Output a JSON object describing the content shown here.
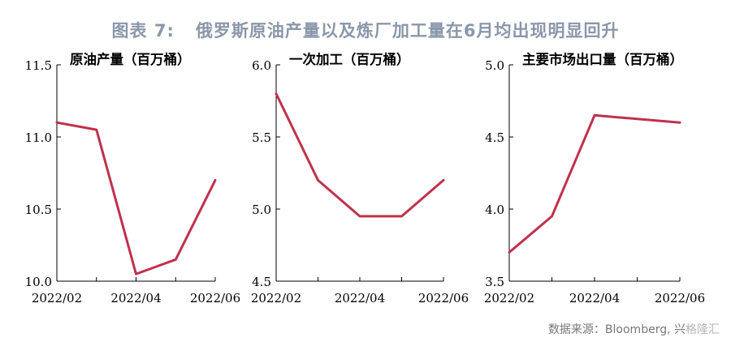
{
  "figure": {
    "number": "图表 7:",
    "title": "俄罗斯原油产量以及炼厂加工量在6月均出现明显回升"
  },
  "source": {
    "text": "数据来源：Bloomberg, 兴",
    "watermark": "格隆汇"
  },
  "colors": {
    "line": "#c0314b",
    "axis": "#000000",
    "text": "#000000"
  },
  "chart_data": [
    {
      "type": "line",
      "title": "原油产量（百万桶）",
      "x": [
        "2022/02",
        "2022/03",
        "2022/04",
        "2022/05",
        "2022/06"
      ],
      "xticks": [
        "2022/02",
        "2022/04",
        "2022/06"
      ],
      "y": [
        11.1,
        11.05,
        10.05,
        10.15,
        10.7
      ],
      "ylim": [
        10.0,
        11.5
      ],
      "yticks": [
        "10.0",
        "10.5",
        "11.0",
        "11.5"
      ],
      "grid": false
    },
    {
      "type": "line",
      "title": "一次加工（百万桶）",
      "x": [
        "2022/02",
        "2022/03",
        "2022/04",
        "2022/05",
        "2022/06"
      ],
      "xticks": [
        "2022/02",
        "2022/04",
        "2022/06"
      ],
      "y": [
        5.8,
        5.2,
        4.95,
        4.95,
        5.2
      ],
      "ylim": [
        4.5,
        6.0
      ],
      "yticks": [
        "4.5",
        "5.0",
        "5.5",
        "6.0"
      ],
      "grid": false
    },
    {
      "type": "line",
      "title": "主要市场出口量（百万桶）",
      "x": [
        "2022/02",
        "2022/03",
        "2022/04",
        "2022/05",
        "2022/06"
      ],
      "xticks": [
        "2022/02",
        "2022/04",
        "2022/06"
      ],
      "y": [
        3.7,
        3.95,
        4.65,
        4.625,
        4.6
      ],
      "ylim": [
        3.5,
        5.0
      ],
      "yticks": [
        "3.5",
        "4.0",
        "4.5",
        "5.0"
      ],
      "grid": false
    }
  ]
}
